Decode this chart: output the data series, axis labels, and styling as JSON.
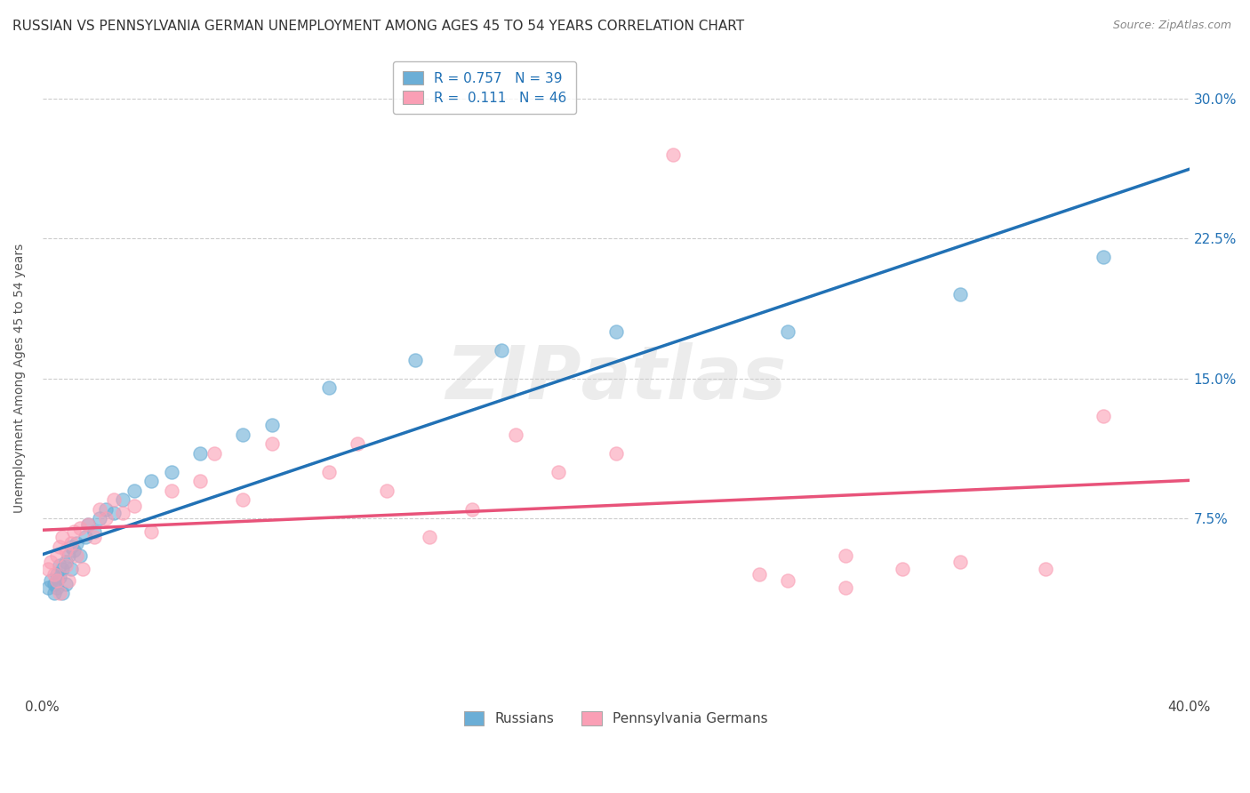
{
  "title": "RUSSIAN VS PENNSYLVANIA GERMAN UNEMPLOYMENT AMONG AGES 45 TO 54 YEARS CORRELATION CHART",
  "source": "Source: ZipAtlas.com",
  "ylabel": "Unemployment Among Ages 45 to 54 years",
  "xlim": [
    0.0,
    0.4
  ],
  "ylim": [
    -0.02,
    0.32
  ],
  "yticks": [
    0.075,
    0.15,
    0.225,
    0.3
  ],
  "ytick_labels": [
    "7.5%",
    "15.0%",
    "22.5%",
    "30.0%"
  ],
  "xtick_positions": [
    0.0,
    0.4
  ],
  "xtick_labels": [
    "0.0%",
    "40.0%"
  ],
  "russian_R": "0.757",
  "russian_N": "39",
  "pg_R": "0.111",
  "pg_N": "46",
  "russian_color": "#6baed6",
  "pg_color": "#fa9fb5",
  "russian_line_color": "#2171b5",
  "pg_line_color": "#e8537a",
  "legend_label_russian": "Russians",
  "legend_label_pg": "Pennsylvania Germans",
  "background_color": "#ffffff",
  "grid_color": "#cccccc",
  "russian_points_x": [
    0.002,
    0.003,
    0.004,
    0.004,
    0.005,
    0.005,
    0.005,
    0.006,
    0.006,
    0.007,
    0.007,
    0.008,
    0.008,
    0.009,
    0.01,
    0.01,
    0.011,
    0.012,
    0.013,
    0.015,
    0.016,
    0.018,
    0.02,
    0.022,
    0.025,
    0.028,
    0.032,
    0.038,
    0.045,
    0.055,
    0.07,
    0.08,
    0.1,
    0.13,
    0.16,
    0.2,
    0.26,
    0.32,
    0.37
  ],
  "russian_points_y": [
    0.038,
    0.042,
    0.035,
    0.04,
    0.045,
    0.038,
    0.042,
    0.05,
    0.044,
    0.048,
    0.035,
    0.052,
    0.04,
    0.055,
    0.048,
    0.06,
    0.058,
    0.062,
    0.055,
    0.065,
    0.072,
    0.068,
    0.075,
    0.08,
    0.078,
    0.085,
    0.09,
    0.095,
    0.1,
    0.11,
    0.12,
    0.125,
    0.145,
    0.16,
    0.165,
    0.175,
    0.175,
    0.195,
    0.215
  ],
  "pg_points_x": [
    0.002,
    0.003,
    0.004,
    0.005,
    0.005,
    0.006,
    0.006,
    0.007,
    0.008,
    0.008,
    0.009,
    0.01,
    0.011,
    0.012,
    0.013,
    0.014,
    0.016,
    0.018,
    0.02,
    0.022,
    0.025,
    0.028,
    0.032,
    0.038,
    0.045,
    0.055,
    0.06,
    0.07,
    0.08,
    0.1,
    0.11,
    0.12,
    0.135,
    0.15,
    0.165,
    0.18,
    0.2,
    0.22,
    0.26,
    0.28,
    0.3,
    0.32,
    0.35,
    0.37,
    0.28,
    0.25
  ],
  "pg_points_y": [
    0.048,
    0.052,
    0.045,
    0.055,
    0.042,
    0.06,
    0.035,
    0.065,
    0.05,
    0.058,
    0.042,
    0.062,
    0.068,
    0.055,
    0.07,
    0.048,
    0.072,
    0.065,
    0.08,
    0.075,
    0.085,
    0.078,
    0.082,
    0.068,
    0.09,
    0.095,
    0.11,
    0.085,
    0.115,
    0.1,
    0.115,
    0.09,
    0.065,
    0.08,
    0.12,
    0.1,
    0.11,
    0.27,
    0.042,
    0.055,
    0.048,
    0.052,
    0.048,
    0.13,
    0.038,
    0.045
  ],
  "title_fontsize": 11,
  "axis_label_fontsize": 10,
  "tick_fontsize": 11
}
